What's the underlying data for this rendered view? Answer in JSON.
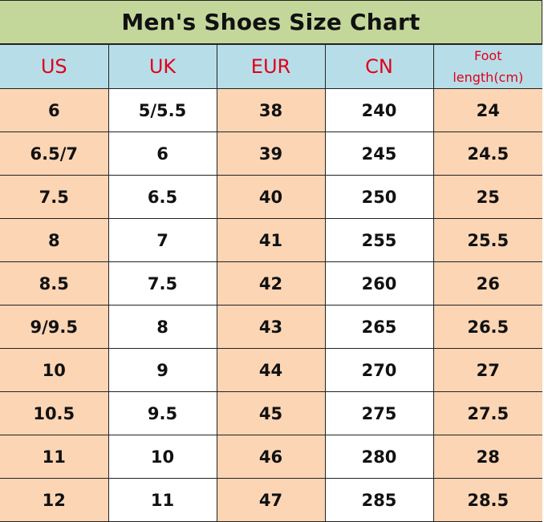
{
  "title": "Men's Shoes Size Chart",
  "headers": [
    "US",
    "UK",
    "EUR",
    "CN"
  ],
  "foot_header": {
    "line1": "Foot",
    "line2": "length(cm)"
  },
  "colors": {
    "title_bg": "#c4d79b",
    "header_bg": "#b7dee8",
    "header_text": "#e0001b",
    "peach_cell": "#fcd5b4",
    "white_cell": "#ffffff"
  },
  "rows": [
    [
      "6",
      "5/5.5",
      "38",
      "240",
      "24"
    ],
    [
      "6.5/7",
      "6",
      "39",
      "245",
      "24.5"
    ],
    [
      "7.5",
      "6.5",
      "40",
      "250",
      "25"
    ],
    [
      "8",
      "7",
      "41",
      "255",
      "25.5"
    ],
    [
      "8.5",
      "7.5",
      "42",
      "260",
      "26"
    ],
    [
      "9/9.5",
      "8",
      "43",
      "265",
      "26.5"
    ],
    [
      "10",
      "9",
      "44",
      "270",
      "27"
    ],
    [
      "10.5",
      "9.5",
      "45",
      "275",
      "27.5"
    ],
    [
      "11",
      "10",
      "46",
      "280",
      "28"
    ],
    [
      "12",
      "11",
      "47",
      "285",
      "28.5"
    ]
  ]
}
